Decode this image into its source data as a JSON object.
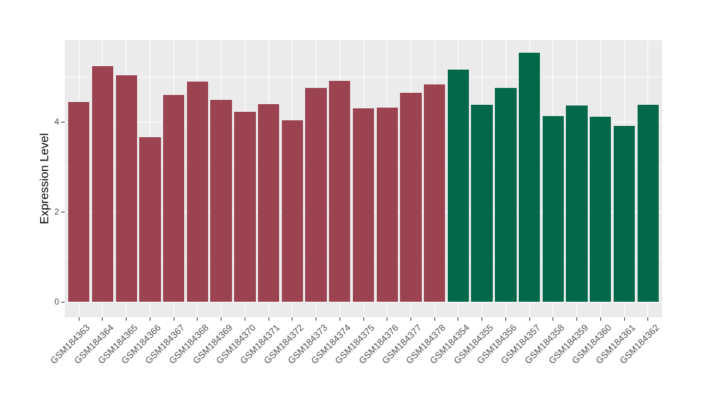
{
  "chart_data": {
    "type": "bar",
    "title": "",
    "xlabel": "",
    "ylabel": "Expression Level",
    "yticks": [
      0,
      2,
      4
    ],
    "minor_yticks": [
      1,
      3,
      5
    ],
    "ylim": [
      -0.34,
      5.82
    ],
    "grid": "on",
    "legend": "none",
    "panel_bg": "#EBEBEB",
    "gridline_color": "#FFFFFF",
    "tick_color": "#333333",
    "axis_text_color": "#4D4D4D",
    "group_colors": {
      "left-group": "#9C4351",
      "right-group": "#036849"
    },
    "bars": [
      {
        "label": "GSM184363",
        "value": 4.45,
        "color": "#9C4351"
      },
      {
        "label": "GSM184364",
        "value": 5.24,
        "color": "#9C4351"
      },
      {
        "label": "GSM184365",
        "value": 5.04,
        "color": "#9C4351"
      },
      {
        "label": "GSM184366",
        "value": 3.66,
        "color": "#9C4351"
      },
      {
        "label": "GSM184367",
        "value": 4.6,
        "color": "#9C4351"
      },
      {
        "label": "GSM184368",
        "value": 4.9,
        "color": "#9C4351"
      },
      {
        "label": "GSM184369",
        "value": 4.49,
        "color": "#9C4351"
      },
      {
        "label": "GSM184370",
        "value": 4.22,
        "color": "#9C4351"
      },
      {
        "label": "GSM184371",
        "value": 4.4,
        "color": "#9C4351"
      },
      {
        "label": "GSM184372",
        "value": 4.04,
        "color": "#9C4351"
      },
      {
        "label": "GSM184373",
        "value": 4.76,
        "color": "#9C4351"
      },
      {
        "label": "GSM184374",
        "value": 4.91,
        "color": "#9C4351"
      },
      {
        "label": "GSM184375",
        "value": 4.3,
        "color": "#9C4351"
      },
      {
        "label": "GSM184376",
        "value": 4.32,
        "color": "#9C4351"
      },
      {
        "label": "GSM184377",
        "value": 4.64,
        "color": "#9C4351"
      },
      {
        "label": "GSM184378",
        "value": 4.83,
        "color": "#9C4351"
      },
      {
        "label": "GSM184354",
        "value": 5.16,
        "color": "#036849"
      },
      {
        "label": "GSM184355",
        "value": 4.38,
        "color": "#036849"
      },
      {
        "label": "GSM184356",
        "value": 4.75,
        "color": "#036849"
      },
      {
        "label": "GSM184357",
        "value": 5.54,
        "color": "#036849"
      },
      {
        "label": "GSM184358",
        "value": 4.13,
        "color": "#036849"
      },
      {
        "label": "GSM184359",
        "value": 4.36,
        "color": "#036849"
      },
      {
        "label": "GSM184360",
        "value": 4.11,
        "color": "#036849"
      },
      {
        "label": "GSM184361",
        "value": 3.91,
        "color": "#036849"
      },
      {
        "label": "GSM184362",
        "value": 4.38,
        "color": "#036849"
      }
    ]
  }
}
